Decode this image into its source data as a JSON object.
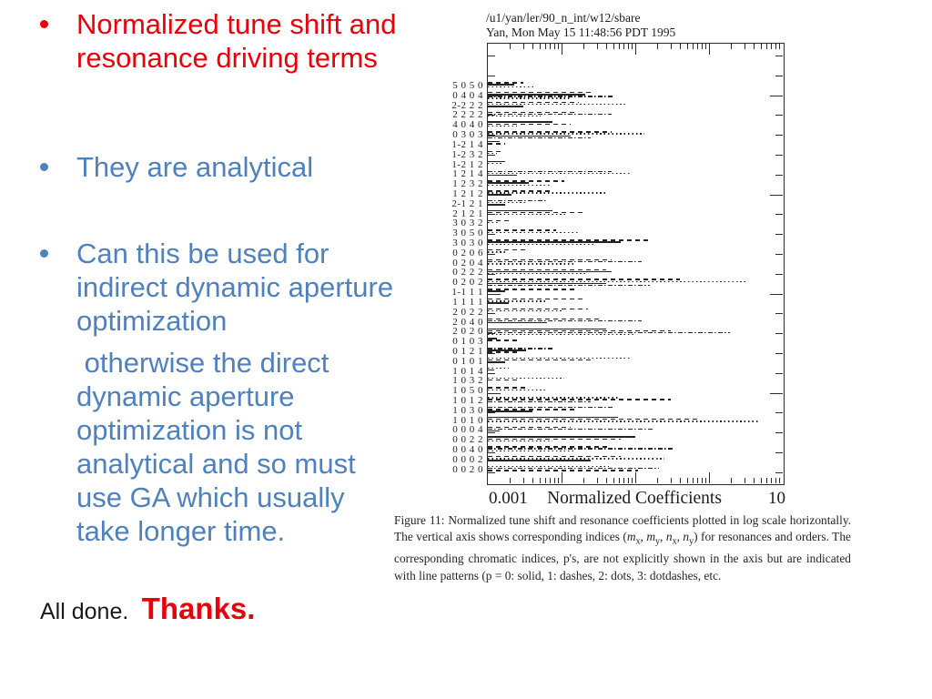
{
  "slide": {
    "bullets": [
      {
        "color": "red",
        "text": "Normalized tune shift and resonance driving terms"
      },
      {
        "color": "blue",
        "text": "They are analytical"
      },
      {
        "color": "blue",
        "text": "Can this be used for indirect dynamic aperture optimization"
      },
      {
        "color": "blue",
        "text": " otherwise the direct dynamic aperture optimization is not analytical and so must use GA which usually take longer time."
      }
    ],
    "footer": {
      "all_done": "All done.",
      "thanks": "Thanks."
    },
    "colors": {
      "red": "#e8000b",
      "blue": "#4f81bd"
    }
  },
  "figure": {
    "header_line1": "/u1/yan/ler/90_n_int/w12/sbare",
    "header_line2": "Yan, Mon May 15 11:48:56 PDT 1995",
    "xaxis": {
      "min_label": "0.001",
      "max_label": "10",
      "title": "Normalized Coefficients"
    },
    "caption": {
      "p1": "Figure 11:  Normalized tune shift and resonance coefficients plotted in log scale horizontally.  The vertical axis shows corresponding indices (",
      "var_m": "m",
      "var_n": "n",
      "sub_x": "x",
      "sub_y": "y",
      "sep": ", ",
      "p2": ") for resonances and orders.  The corresponding chromatic indices, p's, are not explicitly shown in the axis but are indicated with line patterns (p = 0: solid, 1: dashes, 2: dots, 3: dotdashes, etc."
    }
  },
  "chart_data": {
    "type": "line",
    "title": "",
    "xlabel": "Normalized Coefficients",
    "xscale": "log",
    "xlim": [
      0.001,
      10
    ],
    "grid": false,
    "legend_note": "p = 0: solid, 1: dashes, 2: dots, 3: dotdashes",
    "ylabel_note": "indices (mx, my, nx, ny) for resonances and orders",
    "rows": [
      {
        "label": "5 0 5 0",
        "segments": [
          [
            "dash",
            0.12
          ],
          [
            "solid",
            0.09
          ],
          [
            "dot",
            0.16
          ]
        ]
      },
      {
        "label": "0 4 0 4",
        "segments": [
          [
            "dash",
            0.36
          ],
          [
            "solid",
            0.33
          ],
          [
            "dashdot",
            0.43
          ],
          [
            "dot",
            0.28
          ]
        ]
      },
      {
        "label": "2-2 2 2",
        "segments": [
          [
            "dash",
            0.31
          ],
          [
            "dot",
            0.47
          ],
          [
            "solid",
            0.12
          ]
        ]
      },
      {
        "label": "2 2 2 2",
        "segments": [
          [
            "dash",
            0.3
          ],
          [
            "dashdot",
            0.42
          ],
          [
            "dot",
            0.18
          ]
        ]
      },
      {
        "label": "4 0 4 0",
        "segments": [
          [
            "solid",
            0.22
          ],
          [
            "dash",
            0.28
          ],
          [
            "dot",
            0.1
          ]
        ]
      },
      {
        "label": "0 3 0 3",
        "segments": [
          [
            "dash",
            0.42
          ],
          [
            "dot",
            0.53
          ],
          [
            "solid",
            0.28
          ],
          [
            "dashdot",
            0.35
          ]
        ]
      },
      {
        "label": "1-2 1 4",
        "segments": [
          [
            "solid",
            0.04
          ],
          [
            "dash",
            0.06
          ]
        ]
      },
      {
        "label": "1-2 3 2",
        "segments": [
          [
            "dash",
            0.05
          ],
          [
            "dot",
            0.03
          ]
        ]
      },
      {
        "label": "1-2 1 2",
        "segments": [
          [
            "solid",
            0.06
          ],
          [
            "dot",
            0.05
          ]
        ]
      },
      {
        "label": "1 2 1 4",
        "segments": [
          [
            "dashdot",
            0.42
          ],
          [
            "dot",
            0.48
          ],
          [
            "solid",
            0.1
          ]
        ]
      },
      {
        "label": "1 2 3 2",
        "segments": [
          [
            "dash",
            0.26
          ],
          [
            "solid",
            0.14
          ],
          [
            "dot",
            0.21
          ]
        ]
      },
      {
        "label": "1 2 1 2",
        "segments": [
          [
            "dash",
            0.22
          ],
          [
            "dot",
            0.4
          ],
          [
            "solid",
            0.08
          ]
        ]
      },
      {
        "label": "2-1 2 1",
        "segments": [
          [
            "dashdot",
            0.2
          ],
          [
            "dot",
            0.13
          ],
          [
            "solid",
            0.06
          ]
        ]
      },
      {
        "label": "2 1 2 1",
        "segments": [
          [
            "solid",
            0.22
          ],
          [
            "dash",
            0.33
          ],
          [
            "dot",
            0.27
          ]
        ]
      },
      {
        "label": "3 0 3 2",
        "segments": [
          [
            "dash",
            0.07
          ],
          [
            "dot",
            0.04
          ]
        ]
      },
      {
        "label": "3 0 5 0",
        "segments": [
          [
            "dash",
            0.23
          ],
          [
            "dot",
            0.31
          ]
        ]
      },
      {
        "label": "3 0 3 0",
        "segments": [
          [
            "dash",
            0.55
          ],
          [
            "solid",
            0.45
          ],
          [
            "dot",
            0.36
          ]
        ]
      },
      {
        "label": "0 2 0 6",
        "segments": [
          [
            "dash",
            0.13
          ],
          [
            "dot",
            0.06
          ]
        ]
      },
      {
        "label": "0 2 0 4",
        "segments": [
          [
            "dash",
            0.42
          ],
          [
            "dashdot",
            0.52
          ],
          [
            "dot",
            0.3
          ]
        ]
      },
      {
        "label": "0 2 2 2",
        "segments": [
          [
            "dash",
            0.4
          ],
          [
            "solid",
            0.42
          ],
          [
            "dot",
            0.33
          ]
        ]
      },
      {
        "label": "0 2 0 2",
        "segments": [
          [
            "dash",
            0.65
          ],
          [
            "dot",
            0.88
          ],
          [
            "solid",
            0.4
          ],
          [
            "dashdot",
            0.55
          ]
        ]
      },
      {
        "label": "1-1 1 1",
        "segments": [
          [
            "dash",
            0.3
          ],
          [
            "solid",
            0.06
          ]
        ]
      },
      {
        "label": "1 1 1 1",
        "segments": [
          [
            "dash",
            0.32
          ],
          [
            "dot",
            0.2
          ],
          [
            "solid",
            0.07
          ]
        ]
      },
      {
        "label": "2 0 2 2",
        "segments": [
          [
            "dash",
            0.34
          ],
          [
            "dot",
            0.25
          ]
        ]
      },
      {
        "label": "2 0 4 0",
        "segments": [
          [
            "dash",
            0.38
          ],
          [
            "dashdot",
            0.52
          ],
          [
            "solid",
            0.2
          ]
        ]
      },
      {
        "label": "2 0 2 0",
        "segments": [
          [
            "solid",
            0.4
          ],
          [
            "dash",
            0.62
          ],
          [
            "dashdot",
            0.82
          ],
          [
            "dot",
            0.5
          ]
        ]
      },
      {
        "label": "0 1 0 3",
        "segments": [
          [
            "solid",
            0.03
          ],
          [
            "dash",
            0.1
          ]
        ]
      },
      {
        "label": "0 1 2 1",
        "segments": [
          [
            "dashdot",
            0.22
          ],
          [
            "solid",
            0.13
          ],
          [
            "dash",
            0.1
          ]
        ]
      },
      {
        "label": "0 1 0 1",
        "segments": [
          [
            "dot",
            0.48
          ],
          [
            "dash",
            0.35
          ],
          [
            "solid",
            0.06
          ]
        ]
      },
      {
        "label": "1 0 1 4",
        "segments": [
          [
            "dot",
            0.07
          ],
          [
            "solid",
            0.02
          ]
        ]
      },
      {
        "label": "1 0 3 2",
        "segments": [
          [
            "dot",
            0.26
          ],
          [
            "dash",
            0.11
          ]
        ]
      },
      {
        "label": "1 0 5 0",
        "segments": [
          [
            "dash",
            0.14
          ],
          [
            "dot",
            0.2
          ]
        ]
      },
      {
        "label": "1 0 1 2",
        "segments": [
          [
            "dot",
            0.44
          ],
          [
            "dash",
            0.62
          ],
          [
            "dashdot",
            0.35
          ]
        ]
      },
      {
        "label": "1 0 3 0",
        "segments": [
          [
            "dashdot",
            0.43
          ],
          [
            "dash",
            0.3
          ],
          [
            "solid",
            0.15
          ]
        ]
      },
      {
        "label": "1 0 1 0",
        "segments": [
          [
            "solid",
            0.44
          ],
          [
            "dash",
            0.72
          ],
          [
            "dot",
            0.92
          ]
        ]
      },
      {
        "label": "0 0 0 4",
        "segments": [
          [
            "dash",
            0.28
          ],
          [
            "dashdot",
            0.56
          ],
          [
            "solid",
            0.04
          ]
        ]
      },
      {
        "label": "0 0 2 2",
        "segments": [
          [
            "solid",
            0.5
          ],
          [
            "dash",
            0.45
          ],
          [
            "dot",
            0.22
          ]
        ]
      },
      {
        "label": "0 0 4 0",
        "segments": [
          [
            "dash",
            0.41
          ],
          [
            "dashdot",
            0.63
          ],
          [
            "dot",
            0.3
          ]
        ]
      },
      {
        "label": "0 0 0 2",
        "segments": [
          [
            "dash",
            0.45
          ],
          [
            "dot",
            0.6
          ],
          [
            "solid",
            0.35
          ]
        ]
      },
      {
        "label": "0 0 2 0",
        "segments": [
          [
            "dot",
            0.41
          ],
          [
            "dashdot",
            0.58
          ],
          [
            "dash",
            0.51
          ]
        ]
      }
    ]
  }
}
